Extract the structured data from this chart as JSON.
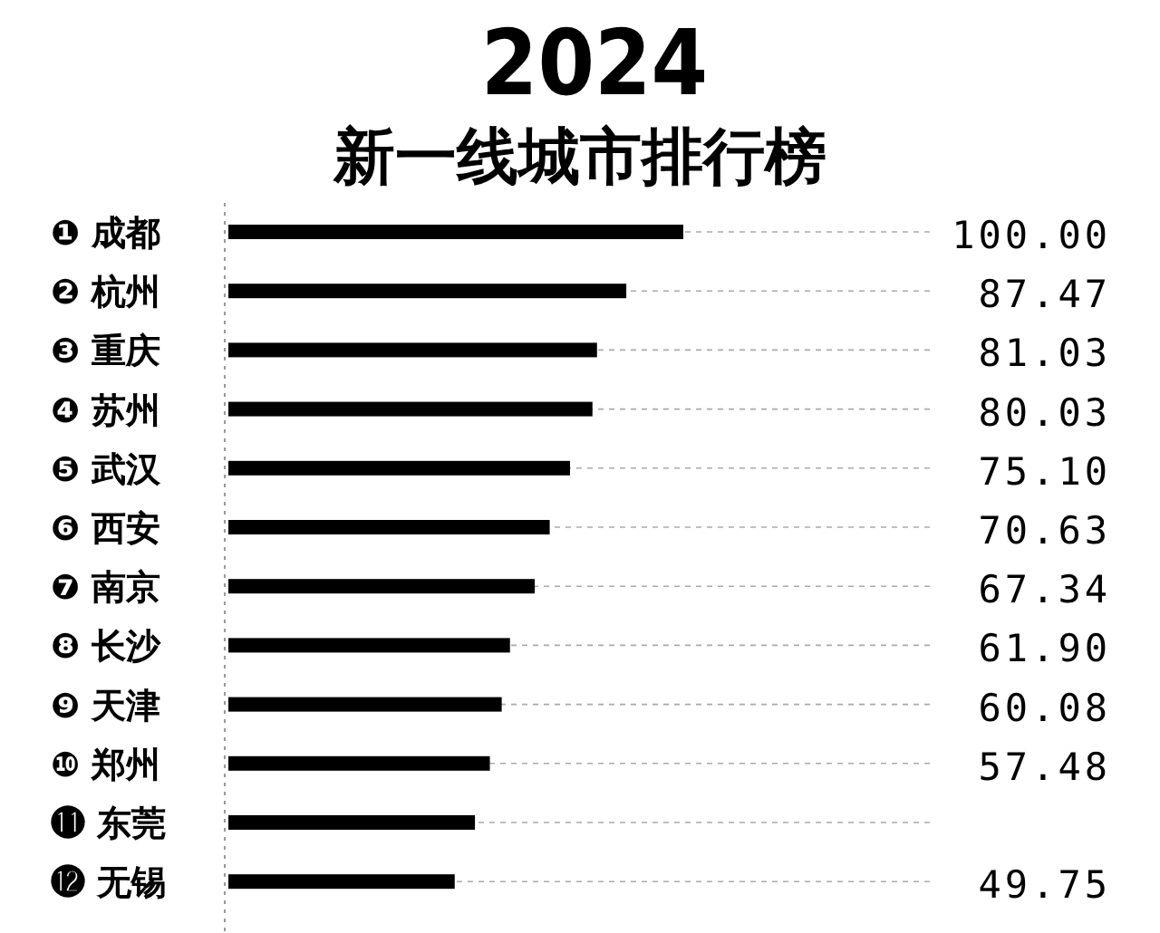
{
  "chart_data": {
    "type": "bar",
    "orientation": "horizontal",
    "title": "2024",
    "subtitle": "新一线城市排行榜",
    "categories": [
      "❶ 成都",
      "❷ 杭州",
      "❸ 重庆",
      "❹ 苏州",
      "❺ 武汉",
      "❻ 西安",
      "❼ 南京",
      "❽ 长沙",
      "❾ 天津",
      "❿ 郑州",
      "⓫ 东莞",
      "⓬ 无锡"
    ],
    "values": [
      100.0,
      87.47,
      81.03,
      80.03,
      75.1,
      70.63,
      67.34,
      61.9,
      60.08,
      57.48,
      54.2,
      49.75
    ],
    "value_labels": [
      "100.00",
      "87.47",
      "81.03",
      "80.03",
      "75.10",
      "70.63",
      "67.34",
      "61.90",
      "60.08",
      "57.48",
      null,
      "49.75"
    ],
    "color": "#000000",
    "grid": "y"
  }
}
